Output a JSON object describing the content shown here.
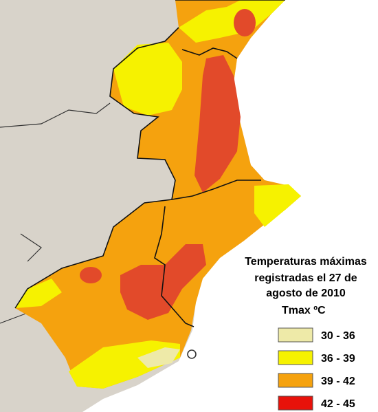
{
  "legend": {
    "title_lines": [
      "Temperaturas máximas",
      "registradas el  27 de",
      "agosto de 2010"
    ],
    "unit_title": "Tmax ºC",
    "items": [
      {
        "label": "30 - 36",
        "color": "#eeeaa8"
      },
      {
        "label": "36 - 39",
        "color": "#f6f200"
      },
      {
        "label": "39 - 42",
        "color": "#f5a20e"
      },
      {
        "label": "42 - 45",
        "color": "#e8120a"
      }
    ]
  }
}
